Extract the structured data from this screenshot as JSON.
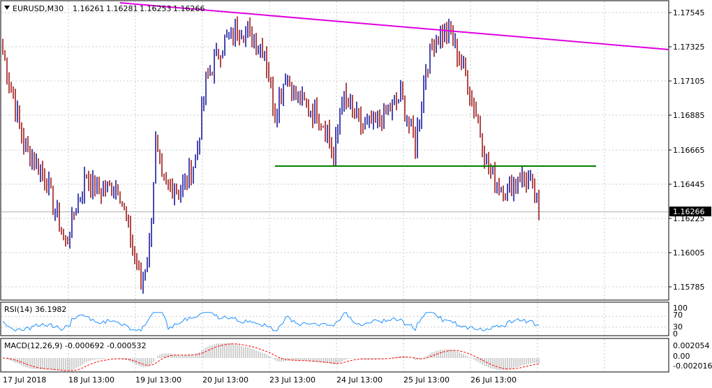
{
  "main": {
    "symbol_label": "EURUSD,M30",
    "ohlc": [
      "1.16261",
      "1.16281",
      "1.16253",
      "1.16266"
    ],
    "price_ticks": [
      "1.17545",
      "1.17325",
      "1.17105",
      "1.16885",
      "1.16665",
      "1.16445",
      "1.16225",
      "1.16005",
      "1.15785"
    ],
    "current_price": "1.16266",
    "resistance_color": "#e000e0",
    "support_color": "#008000"
  },
  "rsi": {
    "label": "RSI(14) 36.1982",
    "ticks": [
      "100",
      "70",
      "30",
      "0"
    ],
    "line_color": "#1e90ff"
  },
  "macd": {
    "label": "MACD(12,26,9) -0.000692 -0.000532",
    "ticks": [
      "0.002054",
      "0.00",
      "-0.002016"
    ],
    "signal_color": "#ff0000"
  },
  "time_axis": [
    "17 Jul 2018",
    "18 Jul 13:00",
    "19 Jul 13:00",
    "20 Jul 13:00",
    "23 Jul 13:00",
    "24 Jul 13:00",
    "25 Jul 13:00",
    "26 Jul 13:00"
  ],
  "chart_data": {
    "type": "candlestick",
    "symbol": "EURUSD",
    "timeframe": "M30",
    "ylim": [
      1.1568,
      1.1765
    ],
    "anchors": [
      {
        "i": 0,
        "p": 1.173
      },
      {
        "i": 5,
        "p": 1.17
      },
      {
        "i": 10,
        "p": 1.167
      },
      {
        "i": 15,
        "p": 1.166
      },
      {
        "i": 20,
        "p": 1.165
      },
      {
        "i": 30,
        "p": 1.1605
      },
      {
        "i": 35,
        "p": 1.163
      },
      {
        "i": 40,
        "p": 1.165
      },
      {
        "i": 45,
        "p": 1.164
      },
      {
        "i": 55,
        "p": 1.1645
      },
      {
        "i": 60,
        "p": 1.1615
      },
      {
        "i": 66,
        "p": 1.158
      },
      {
        "i": 70,
        "p": 1.1605
      },
      {
        "i": 73,
        "p": 1.167
      },
      {
        "i": 76,
        "p": 1.1645
      },
      {
        "i": 85,
        "p": 1.164
      },
      {
        "i": 92,
        "p": 1.166
      },
      {
        "i": 97,
        "p": 1.171
      },
      {
        "i": 105,
        "p": 1.1735
      },
      {
        "i": 114,
        "p": 1.1745
      },
      {
        "i": 125,
        "p": 1.173
      },
      {
        "i": 130,
        "p": 1.169
      },
      {
        "i": 135,
        "p": 1.1715
      },
      {
        "i": 140,
        "p": 1.17
      },
      {
        "i": 150,
        "p": 1.169
      },
      {
        "i": 155,
        "p": 1.168
      },
      {
        "i": 158,
        "p": 1.166
      },
      {
        "i": 162,
        "p": 1.17
      },
      {
        "i": 167,
        "p": 1.169
      },
      {
        "i": 172,
        "p": 1.168
      },
      {
        "i": 180,
        "p": 1.1685
      },
      {
        "i": 190,
        "p": 1.17
      },
      {
        "i": 197,
        "p": 1.167
      },
      {
        "i": 202,
        "p": 1.172
      },
      {
        "i": 207,
        "p": 1.174
      },
      {
        "i": 214,
        "p": 1.174
      },
      {
        "i": 222,
        "p": 1.171
      },
      {
        "i": 226,
        "p": 1.169
      },
      {
        "i": 229,
        "p": 1.167
      },
      {
        "i": 233,
        "p": 1.165
      },
      {
        "i": 240,
        "p": 1.164
      },
      {
        "i": 247,
        "p": 1.165
      },
      {
        "i": 252,
        "p": 1.1645
      },
      {
        "i": 256,
        "p": 1.1627
      }
    ],
    "resistance_line": {
      "from": 1.176,
      "to": 1.173
    },
    "support_line": {
      "level": 1.1655
    },
    "current": 1.16266
  }
}
